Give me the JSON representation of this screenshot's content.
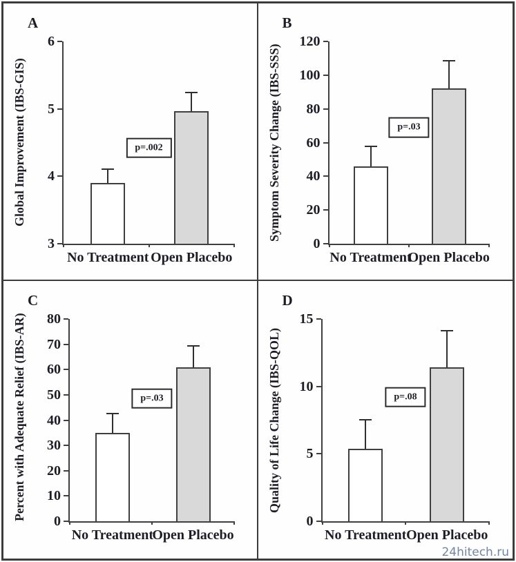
{
  "watermark": "24hitech.ru",
  "colors": {
    "text": "#1d1d27",
    "axis": "#3f3f3f",
    "open_placebo_fill": "#d9d9d9",
    "no_treatment_fill": "#ffffff",
    "watermark": "#7286a2"
  },
  "chart_data": [
    {
      "type": "bar",
      "panel": "A",
      "ylabel": "Global Improvement (IBS-GIS)",
      "categories": [
        "No Treatment",
        "Open Placebo"
      ],
      "values": [
        3.9,
        4.97
      ],
      "error_plus": [
        0.2,
        0.26
      ],
      "ylim": [
        3,
        6
      ],
      "yticks": [
        3,
        4,
        5,
        6
      ],
      "annotation": "p=.002",
      "annotation_y": 4.42,
      "bar_fills": [
        "#ffffff",
        "#d9d9d9"
      ],
      "grid": "off",
      "legend": "none"
    },
    {
      "type": "bar",
      "panel": "B",
      "ylabel": "Symptom Severity Change (IBS-SSS)",
      "categories": [
        "No Treatment",
        "Open Placebo"
      ],
      "values": [
        46,
        92
      ],
      "error_plus": [
        11.5,
        16
      ],
      "ylim": [
        0,
        120
      ],
      "yticks": [
        0,
        20,
        40,
        60,
        80,
        100,
        120
      ],
      "annotation": "p=.03",
      "annotation_y": 69,
      "bar_fills": [
        "#ffffff",
        "#d9d9d9"
      ],
      "grid": "off",
      "legend": "none"
    },
    {
      "type": "bar",
      "panel": "C",
      "ylabel": "Percent with Adequate Relief (IBS-AR)",
      "categories": [
        "No Treatment",
        "Open Placebo"
      ],
      "values": [
        35,
        61
      ],
      "error_plus": [
        7.3,
        8
      ],
      "ylim": [
        0,
        80
      ],
      "yticks": [
        0,
        10,
        20,
        30,
        40,
        50,
        60,
        70,
        80
      ],
      "annotation": "p=.03",
      "annotation_y": 48.5,
      "bar_fills": [
        "#ffffff",
        "#d9d9d9"
      ],
      "grid": "off",
      "legend": "none"
    },
    {
      "type": "bar",
      "panel": "D",
      "ylabel": "Quality of Life Change (IBS-QOL)",
      "categories": [
        "No Treatment",
        "Open Placebo"
      ],
      "values": [
        5.4,
        11.4
      ],
      "error_plus": [
        2.1,
        2.7
      ],
      "ylim": [
        0,
        15
      ],
      "yticks": [
        0,
        5,
        10,
        15
      ],
      "annotation": "p=.08",
      "annotation_y": 9.2,
      "bar_fills": [
        "#ffffff",
        "#d9d9d9"
      ],
      "grid": "off",
      "legend": "none"
    }
  ]
}
